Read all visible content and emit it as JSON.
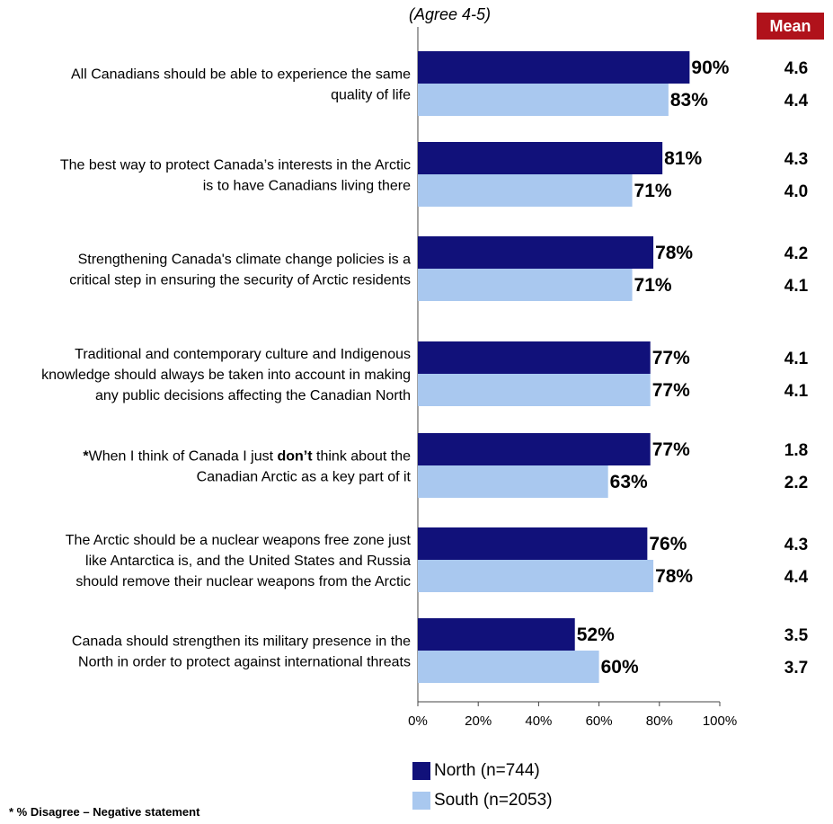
{
  "subtitle": "(Agree 4-5)",
  "mean_header": "Mean",
  "footnote": "* % Disagree – Negative statement",
  "colors": {
    "north": "#11117a",
    "south": "#a9c8ef",
    "mean_bg": "#b0121b"
  },
  "chart_data": {
    "type": "bar",
    "orientation": "horizontal",
    "title": "",
    "subtitle": "(Agree 4-5)",
    "xlabel": "",
    "ylabel": "",
    "xlim": [
      0,
      100
    ],
    "x_ticks": [
      "0%",
      "20%",
      "40%",
      "60%",
      "80%",
      "100%"
    ],
    "grid": false,
    "legend_position": "bottom",
    "categories": [
      {
        "lines": [
          [
            {
              "t": "All Canadians should be able to experience the same"
            }
          ],
          [
            {
              "t": "quality of life"
            }
          ]
        ]
      },
      {
        "lines": [
          [
            {
              "t": "The best way to protect Canada’s interests in the Arctic"
            }
          ],
          [
            {
              "t": "is to have Canadians living there"
            }
          ]
        ]
      },
      {
        "lines": [
          [
            {
              "t": "Strengthening Canada's climate change policies is a"
            }
          ],
          [
            {
              "t": "critical step in ensuring the security of Arctic residents"
            }
          ]
        ]
      },
      {
        "lines": [
          [
            {
              "t": "Traditional and contemporary culture and Indigenous"
            }
          ],
          [
            {
              "t": "knowledge should always be taken into account in making"
            }
          ],
          [
            {
              "t": "any public decisions affecting the Canadian North"
            }
          ]
        ]
      },
      {
        "lines": [
          [
            {
              "t": "*",
              "b": true
            },
            {
              "t": "When I think of Canada I just "
            },
            {
              "t": "don’t",
              "b": true
            },
            {
              "t": " think about the"
            }
          ],
          [
            {
              "t": "Canadian Arctic as a key part of it"
            }
          ]
        ]
      },
      {
        "lines": [
          [
            {
              "t": "The Arctic should be a nuclear weapons free zone just"
            }
          ],
          [
            {
              "t": "like Antarctica is, and the United States and Russia"
            }
          ],
          [
            {
              "t": "should remove their nuclear weapons from the Arctic"
            }
          ]
        ]
      },
      {
        "lines": [
          [
            {
              "t": "Canada should strengthen its military presence in the"
            }
          ],
          [
            {
              "t": "North in order to protect against international threats"
            }
          ]
        ]
      }
    ],
    "series": [
      {
        "name": "North (n=744)",
        "color": "#11117a",
        "values": [
          90,
          81,
          78,
          77,
          77,
          76,
          52
        ],
        "labels": [
          "90%",
          "81%",
          "78%",
          "77%",
          "77%",
          "76%",
          "52%"
        ],
        "means": [
          "4.6",
          "4.3",
          "4.2",
          "4.1",
          "1.8",
          "4.3",
          "3.5"
        ]
      },
      {
        "name": "South (n=2053)",
        "color": "#a9c8ef",
        "values": [
          83,
          71,
          71,
          77,
          63,
          78,
          60
        ],
        "labels": [
          "83%",
          "71%",
          "71%",
          "77%",
          "63%",
          "78%",
          "60%"
        ],
        "means": [
          "4.4",
          "4.0",
          "4.1",
          "4.1",
          "2.2",
          "4.4",
          "3.7"
        ]
      }
    ]
  }
}
